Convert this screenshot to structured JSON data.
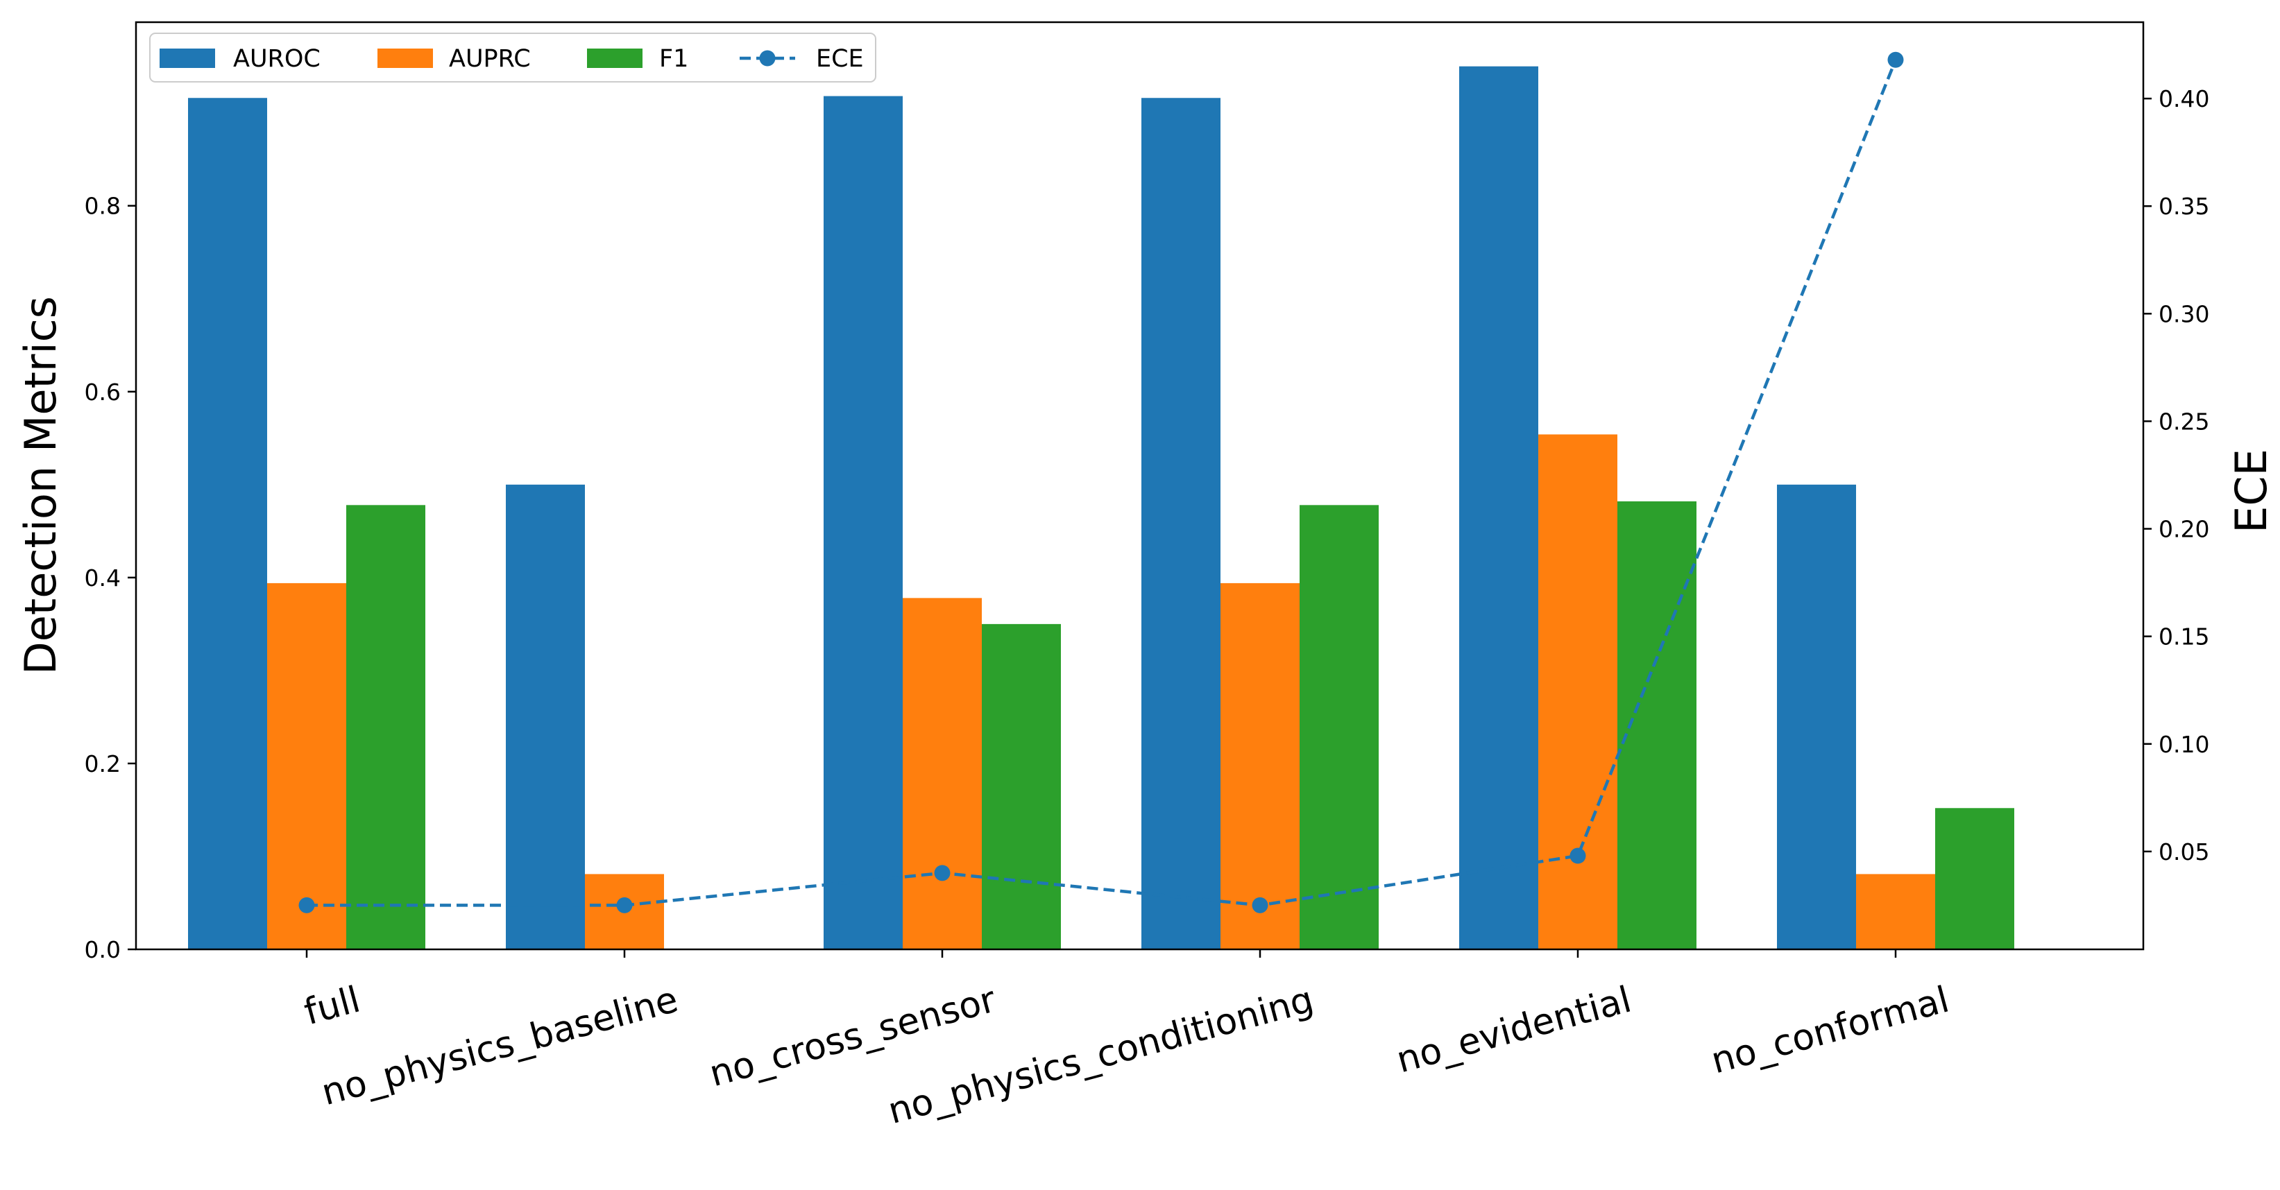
{
  "chart_data": {
    "type": "bar",
    "categories": [
      "full",
      "no_physics_baseline",
      "no_cross_sensor",
      "no_physics_conditioning",
      "no_evidential",
      "no_conformal"
    ],
    "series": [
      {
        "name": "AUROC",
        "color": "#1f77b4",
        "values": [
          0.916,
          0.5,
          0.918,
          0.916,
          0.95,
          0.5
        ]
      },
      {
        "name": "AUPRC",
        "color": "#ff7f0e",
        "values": [
          0.394,
          0.081,
          0.378,
          0.394,
          0.554,
          0.081
        ]
      },
      {
        "name": "F1",
        "color": "#2ca02c",
        "values": [
          0.478,
          0.0,
          0.35,
          0.478,
          0.482,
          0.152
        ]
      }
    ],
    "line_series": {
      "name": "ECE",
      "color": "#1f77b4",
      "axis": "right",
      "style": "dashed",
      "marker": "circle",
      "values": [
        0.025,
        0.025,
        0.04,
        0.025,
        0.048,
        0.418
      ]
    },
    "ylabel": "Detection Metrics",
    "ylabel_right": "ECE",
    "ylim": [
      0,
      0.9975
    ],
    "ylim_right": [
      0.0045,
      0.4355
    ],
    "yticks": [
      "0.0",
      "0.2",
      "0.4",
      "0.6",
      "0.8"
    ],
    "yticks_right": [
      "0.05",
      "0.10",
      "0.15",
      "0.20",
      "0.25",
      "0.30",
      "0.35",
      "0.40"
    ],
    "legend": [
      "AUROC",
      "AUPRC",
      "F1",
      "ECE"
    ],
    "legend_position": "top-left",
    "grid": false
  }
}
